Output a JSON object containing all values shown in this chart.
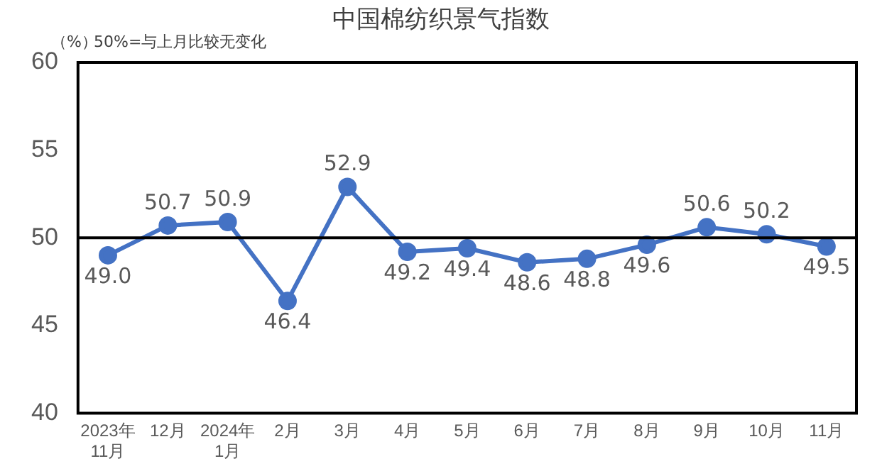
{
  "chart_data": {
    "type": "line",
    "title": "中国棉纺织景气指数",
    "ylabel": "（%）",
    "annotations": [
      "50%=与上月比较无变化"
    ],
    "categories": [
      "2023年\n11月",
      "12月",
      "2024年\n1月",
      "2月",
      "3月",
      "4月",
      "5月",
      "6月",
      "7月",
      "8月",
      "9月",
      "10月",
      "11月"
    ],
    "series": [
      {
        "color": "#4472c4",
        "values": [
          49.0,
          50.7,
          50.9,
          46.4,
          52.9,
          49.2,
          49.4,
          48.6,
          48.8,
          49.6,
          50.6,
          50.2,
          49.5
        ],
        "value_labels": [
          "49.0",
          "50.7",
          "50.9",
          "46.4",
          "52.9",
          "49.2",
          "49.4",
          "48.6",
          "48.8",
          "49.6",
          "50.6",
          "50.2",
          "49.5"
        ]
      }
    ],
    "ylim": [
      40,
      60
    ],
    "yticks": [
      40,
      45,
      50,
      55,
      60
    ],
    "grid": false,
    "legend": false,
    "marker": "circle",
    "line_style": "solid",
    "ref_lines": [
      {
        "axis": "y",
        "value": 50,
        "color": "#000000"
      }
    ]
  }
}
